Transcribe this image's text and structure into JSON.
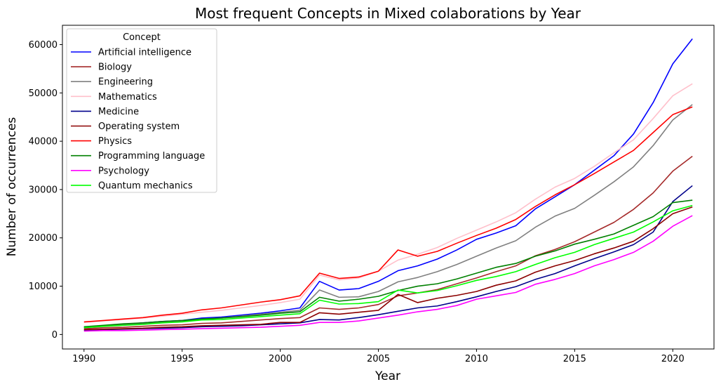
{
  "chart_data": {
    "type": "line",
    "title": "Most frequent Concepts in Mixed colaborations by Year",
    "xlabel": "Year",
    "ylabel": "Number of occurrences",
    "xlim": [
      1988.9,
      2022.1
    ],
    "ylim": [
      -3000,
      64000
    ],
    "xticks": [
      1990,
      1995,
      2000,
      2005,
      2010,
      2015,
      2020
    ],
    "yticks": [
      0,
      10000,
      20000,
      30000,
      40000,
      50000,
      60000
    ],
    "grid": false,
    "legend": {
      "title": "Concept",
      "position": "top-left"
    },
    "x": [
      1990,
      1991,
      1992,
      1993,
      1994,
      1995,
      1996,
      1997,
      1998,
      1999,
      2000,
      2001,
      2002,
      2003,
      2004,
      2005,
      2006,
      2007,
      2008,
      2009,
      2010,
      2011,
      2012,
      2013,
      2014,
      2015,
      2016,
      2017,
      2018,
      2019,
      2020,
      2021
    ],
    "series": [
      {
        "name": "Artificial intelligence",
        "color": "#0000ff",
        "values": [
          1500,
          1800,
          2100,
          2400,
          2700,
          2900,
          3400,
          3600,
          4000,
          4400,
          4900,
          5500,
          11000,
          9200,
          9500,
          11000,
          13200,
          14200,
          15600,
          17500,
          19700,
          21000,
          22500,
          26000,
          28500,
          31000,
          34000,
          37000,
          41500,
          48000,
          56000,
          61200
        ]
      },
      {
        "name": "Biology",
        "color": "#a52a2a",
        "values": [
          1200,
          1400,
          1500,
          1700,
          1900,
          2000,
          2300,
          2400,
          2700,
          3000,
          3300,
          3500,
          5500,
          5200,
          5500,
          6200,
          8000,
          8600,
          9300,
          10500,
          11700,
          13000,
          14200,
          16300,
          17600,
          19200,
          21200,
          23200,
          25900,
          29300,
          33800,
          36900
        ]
      },
      {
        "name": "Engineering",
        "color": "#808080",
        "values": [
          1500,
          1800,
          2000,
          2300,
          2600,
          2800,
          3200,
          3400,
          3800,
          4200,
          4600,
          5000,
          9200,
          7700,
          7800,
          8900,
          10900,
          11800,
          13000,
          14500,
          16200,
          17900,
          19400,
          22200,
          24500,
          26100,
          28800,
          31600,
          34700,
          39100,
          44400,
          47600
        ]
      },
      {
        "name": "Mathematics",
        "color": "#ffc0cb",
        "values": [
          2500,
          2800,
          3100,
          3400,
          3800,
          4200,
          4600,
          5000,
          5500,
          6000,
          6600,
          7300,
          12300,
          11300,
          11700,
          13100,
          15400,
          16600,
          18000,
          19900,
          21600,
          23300,
          25200,
          28000,
          30500,
          32300,
          34800,
          37600,
          40300,
          44700,
          49400,
          51900
        ]
      },
      {
        "name": "Medicine",
        "color": "#00008b",
        "values": [
          900,
          1000,
          1100,
          1200,
          1300,
          1400,
          1600,
          1700,
          1800,
          2000,
          2200,
          2400,
          3100,
          3000,
          3500,
          4100,
          4800,
          5500,
          5900,
          6800,
          7800,
          8900,
          9900,
          11400,
          12600,
          14200,
          15700,
          17100,
          18600,
          21200,
          27500,
          30800
        ]
      },
      {
        "name": "Operating system",
        "color": "#8b0000",
        "values": [
          1000,
          1100,
          1200,
          1300,
          1500,
          1600,
          1800,
          1900,
          2000,
          2100,
          2500,
          2500,
          4500,
          4200,
          4600,
          5000,
          8300,
          6600,
          7500,
          8100,
          8900,
          10200,
          11100,
          12900,
          14200,
          15300,
          16700,
          17900,
          19300,
          21900,
          25000,
          26400
        ]
      },
      {
        "name": "Physics",
        "color": "#ff0000",
        "values": [
          2600,
          2900,
          3200,
          3500,
          4000,
          4400,
          5100,
          5500,
          6100,
          6700,
          7200,
          8000,
          12700,
          11600,
          11900,
          13100,
          17500,
          16200,
          17200,
          18900,
          20500,
          22000,
          23800,
          26500,
          28900,
          31000,
          33300,
          35700,
          38100,
          41800,
          45500,
          47100
        ]
      },
      {
        "name": "Programming language",
        "color": "#008000",
        "values": [
          1600,
          1900,
          2200,
          2400,
          2700,
          2900,
          3200,
          3400,
          3700,
          4000,
          4400,
          4700,
          7700,
          6900,
          7300,
          7900,
          9100,
          10000,
          10500,
          11500,
          12700,
          13900,
          14700,
          16200,
          17300,
          18700,
          19700,
          20800,
          22600,
          24400,
          27300,
          27800
        ]
      },
      {
        "name": "Psychology",
        "color": "#ff00ff",
        "values": [
          700,
          800,
          800,
          900,
          1000,
          1100,
          1200,
          1300,
          1400,
          1500,
          1700,
          1900,
          2500,
          2500,
          2800,
          3400,
          4000,
          4700,
          5200,
          6000,
          7300,
          8000,
          8700,
          10400,
          11400,
          12600,
          14200,
          15500,
          17000,
          19300,
          22400,
          24600
        ]
      },
      {
        "name": "Quantum mechanics",
        "color": "#00ff00",
        "values": [
          1400,
          1700,
          1900,
          2100,
          2400,
          2600,
          3000,
          3100,
          3400,
          3700,
          4000,
          4300,
          7100,
          6300,
          6400,
          6800,
          9200,
          8600,
          9100,
          10100,
          11200,
          12000,
          13000,
          14500,
          15900,
          17000,
          18600,
          19900,
          21200,
          23300,
          25600,
          26700
        ]
      }
    ]
  }
}
